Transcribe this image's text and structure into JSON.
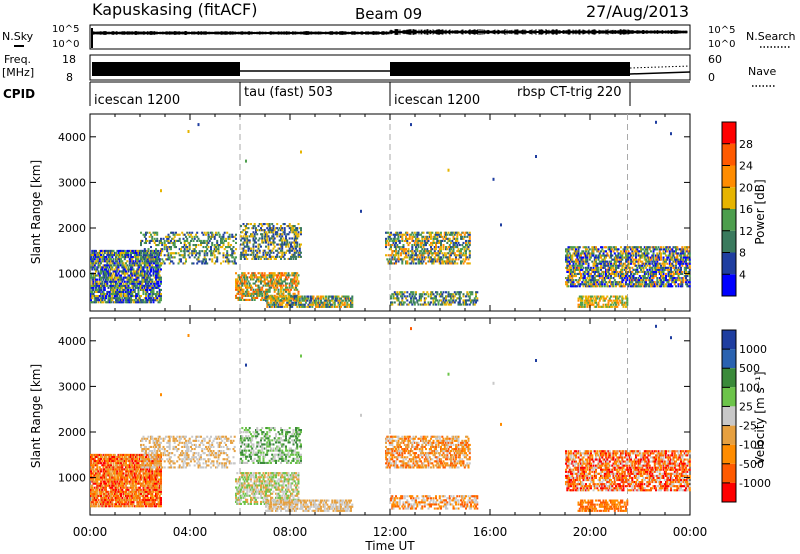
{
  "header": {
    "station": "Kapuskasing (fitACF)",
    "beam": "Beam 09",
    "date": "27/Aug/2013"
  },
  "side_labels": {
    "nsky": "N.Sky",
    "nsearch": "N.Search",
    "freq": "Freq.",
    "freq_unit": "[MHz]",
    "nave": "Nave",
    "cpid": "CPID"
  },
  "noise_axis": {
    "top": "10^5",
    "bottom": "10^0"
  },
  "freq_axis": {
    "top": "18",
    "bottom": "8"
  },
  "nave_axis": {
    "top": "60",
    "bottom": "0"
  },
  "cpid_segments": [
    {
      "label": "icescan 1200"
    },
    {
      "label": "tau (fast) 503"
    },
    {
      "label": "icescan 1200"
    },
    {
      "label": "rbsp CT-trig 220"
    }
  ],
  "chart_data": [
    {
      "type": "heatmap",
      "title": "Power",
      "ylabel": "Slant Range [km]",
      "xlabel": "",
      "x_ticks": [
        "00:00",
        "04:00",
        "08:00",
        "12:00",
        "16:00",
        "20:00",
        "00:00"
      ],
      "xlim_hours": [
        0,
        24
      ],
      "ylim": [
        180,
        4500
      ],
      "y_ticks": [
        1000,
        2000,
        3000,
        4000
      ],
      "colorbar": {
        "label": "Power [dB]",
        "ticks": [
          "28",
          "24",
          "20",
          "16",
          "12",
          "8",
          "4"
        ],
        "colors": [
          "#ff0000",
          "#ff5a00",
          "#ff8c00",
          "#e6b400",
          "#4d9e4d",
          "#3a7a5e",
          "#1f3ea0",
          "#0000ff"
        ]
      },
      "mode_boundaries_hours": [
        6,
        12,
        21.5
      ],
      "clusters": [
        {
          "t0": 0.0,
          "t1": 2.8,
          "r0": 350,
          "r1": 1500,
          "levels": [
            3,
            4,
            5,
            6,
            7
          ],
          "density": 0.75
        },
        {
          "t0": 2.0,
          "t1": 5.8,
          "r0": 1200,
          "r1": 1900,
          "levels": [
            3,
            4,
            5,
            6
          ],
          "density": 0.35
        },
        {
          "t0": 5.8,
          "t1": 8.3,
          "r0": 400,
          "r1": 1000,
          "levels": [
            1,
            2,
            3,
            4,
            5
          ],
          "density": 0.6
        },
        {
          "t0": 6.0,
          "t1": 8.4,
          "r0": 1300,
          "r1": 2100,
          "levels": [
            3,
            5,
            6
          ],
          "density": 0.45
        },
        {
          "t0": 7.0,
          "t1": 10.5,
          "r0": 250,
          "r1": 500,
          "levels": [
            2,
            3,
            4,
            5,
            6
          ],
          "density": 0.7
        },
        {
          "t0": 11.8,
          "t1": 15.2,
          "r0": 1200,
          "r1": 1900,
          "levels": [
            2,
            3,
            4,
            5,
            6
          ],
          "density": 0.55
        },
        {
          "t0": 12.0,
          "t1": 15.5,
          "r0": 300,
          "r1": 600,
          "levels": [
            3,
            4,
            5,
            6
          ],
          "density": 0.5
        },
        {
          "t0": 19.0,
          "t1": 24.0,
          "r0": 700,
          "r1": 1600,
          "levels": [
            2,
            3,
            4,
            5,
            6,
            7
          ],
          "density": 0.65
        },
        {
          "t0": 19.5,
          "t1": 21.5,
          "r0": 250,
          "r1": 500,
          "levels": [
            2,
            3,
            4
          ],
          "density": 0.6
        }
      ],
      "scatter": [
        {
          "t": 3.9,
          "r": 4150,
          "level": 3
        },
        {
          "t": 4.3,
          "r": 4300,
          "level": 6
        },
        {
          "t": 6.2,
          "r": 3500,
          "level": 4
        },
        {
          "t": 8.4,
          "r": 3700,
          "level": 3
        },
        {
          "t": 12.8,
          "r": 4300,
          "level": 6
        },
        {
          "t": 16.1,
          "r": 3100,
          "level": 6
        },
        {
          "t": 16.4,
          "r": 2100,
          "level": 6
        },
        {
          "t": 14.3,
          "r": 3300,
          "level": 3
        },
        {
          "t": 17.8,
          "r": 3600,
          "level": 6
        },
        {
          "t": 22.6,
          "r": 4350,
          "level": 6
        },
        {
          "t": 23.2,
          "r": 4100,
          "level": 6
        },
        {
          "t": 2.8,
          "r": 2850,
          "level": 3
        },
        {
          "t": 10.8,
          "r": 2400,
          "level": 6
        }
      ]
    },
    {
      "type": "heatmap",
      "title": "Velocity",
      "ylabel": "Slant Range [km]",
      "xlabel": "Time UT",
      "x_ticks": [
        "00:00",
        "04:00",
        "08:00",
        "12:00",
        "16:00",
        "20:00",
        "00:00"
      ],
      "xlim_hours": [
        0,
        24
      ],
      "ylim": [
        180,
        4500
      ],
      "y_ticks": [
        1000,
        2000,
        3000,
        4000
      ],
      "colorbar": {
        "label": "Velocity [m s⁻¹]",
        "ticks": [
          "1000",
          "500",
          "100",
          "25",
          "-25",
          "-100",
          "-500",
          "-1000"
        ],
        "colors": [
          "#1f3ea0",
          "#2a62b0",
          "#3a8a3a",
          "#6cc44a",
          "#c8c8c8",
          "#e6a040",
          "#ff8c00",
          "#ff5a00",
          "#ff0000"
        ]
      },
      "mode_boundaries_hours": [
        6,
        12,
        21.5
      ],
      "clusters": [
        {
          "t0": 0.0,
          "t1": 2.8,
          "r0": 350,
          "r1": 1500,
          "levels": [
            5,
            6,
            7,
            8
          ],
          "density": 0.8
        },
        {
          "t0": 2.0,
          "t1": 5.8,
          "r0": 1200,
          "r1": 1900,
          "levels": [
            4,
            5
          ],
          "density": 0.35
        },
        {
          "t0": 5.8,
          "t1": 8.3,
          "r0": 400,
          "r1": 1100,
          "levels": [
            4,
            5,
            3
          ],
          "density": 0.6
        },
        {
          "t0": 6.0,
          "t1": 8.4,
          "r0": 1300,
          "r1": 2100,
          "levels": [
            4,
            3,
            2
          ],
          "density": 0.45
        },
        {
          "t0": 7.0,
          "t1": 10.5,
          "r0": 250,
          "r1": 500,
          "levels": [
            4,
            5
          ],
          "density": 0.65
        },
        {
          "t0": 11.8,
          "t1": 15.2,
          "r0": 1200,
          "r1": 1900,
          "levels": [
            6,
            7,
            5,
            4
          ],
          "density": 0.55
        },
        {
          "t0": 12.0,
          "t1": 15.5,
          "r0": 300,
          "r1": 600,
          "levels": [
            6,
            7,
            4
          ],
          "density": 0.5
        },
        {
          "t0": 19.0,
          "t1": 24.0,
          "r0": 700,
          "r1": 1600,
          "levels": [
            6,
            7,
            8,
            4
          ],
          "density": 0.65
        },
        {
          "t0": 19.5,
          "t1": 21.5,
          "r0": 250,
          "r1": 500,
          "levels": [
            6,
            7
          ],
          "density": 0.6
        }
      ],
      "scatter": [
        {
          "t": 3.9,
          "r": 4150,
          "level": 6
        },
        {
          "t": 6.2,
          "r": 3500,
          "level": 0
        },
        {
          "t": 8.4,
          "r": 3700,
          "level": 3
        },
        {
          "t": 12.8,
          "r": 4300,
          "level": 7
        },
        {
          "t": 16.1,
          "r": 3100,
          "level": 4
        },
        {
          "t": 16.4,
          "r": 2200,
          "level": 6
        },
        {
          "t": 14.3,
          "r": 3300,
          "level": 3
        },
        {
          "t": 17.8,
          "r": 3600,
          "level": 0
        },
        {
          "t": 22.6,
          "r": 4350,
          "level": 0
        },
        {
          "t": 23.2,
          "r": 4100,
          "level": 0
        },
        {
          "t": 2.8,
          "r": 2850,
          "level": 6
        },
        {
          "t": 10.8,
          "r": 2400,
          "level": 4
        }
      ]
    }
  ]
}
